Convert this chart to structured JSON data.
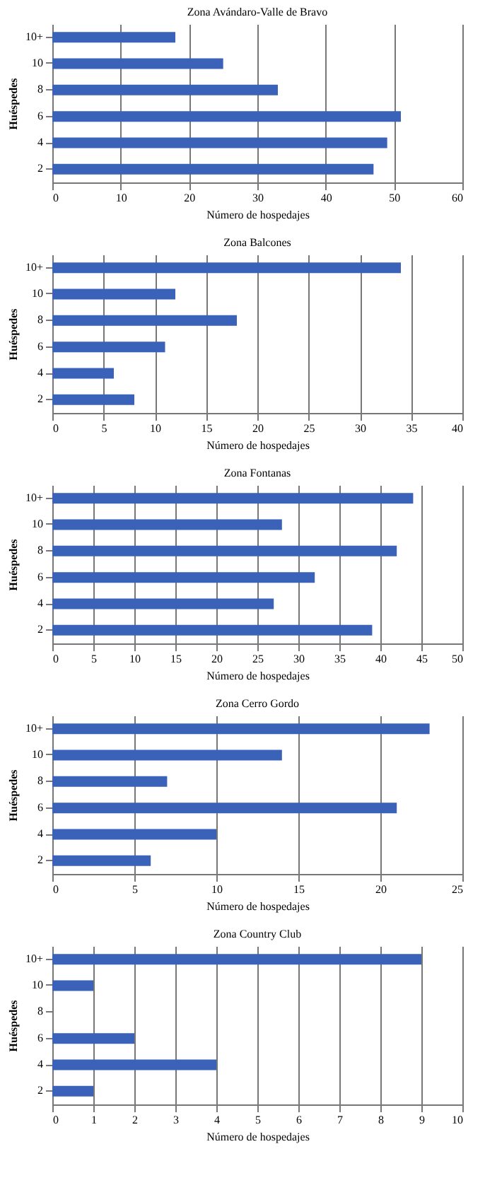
{
  "chart_data": [
    {
      "type": "bar",
      "orientation": "horizontal",
      "title": "Zona Avándaro-Valle de Bravo",
      "xlabel": "Número de hospedajes",
      "ylabel": "Huéspedes",
      "categories": [
        "10+",
        "10",
        "8",
        "6",
        "4",
        "2"
      ],
      "values": [
        18,
        25,
        33,
        51,
        49,
        47
      ],
      "color": "#3a62b8",
      "xlim": [
        0,
        60
      ],
      "xticks": [
        0,
        10,
        20,
        30,
        40,
        50,
        60
      ],
      "grid": "x"
    },
    {
      "type": "bar",
      "orientation": "horizontal",
      "title": "Zona Balcones",
      "xlabel": "Número de hospedajes",
      "ylabel": "Huéspedes",
      "categories": [
        "10+",
        "10",
        "8",
        "6",
        "4",
        "2"
      ],
      "values": [
        34,
        12,
        18,
        11,
        6,
        8
      ],
      "color": "#3a62b8",
      "xlim": [
        0,
        40
      ],
      "xticks": [
        0,
        5,
        10,
        15,
        20,
        25,
        30,
        35,
        40
      ],
      "grid": "x"
    },
    {
      "type": "bar",
      "orientation": "horizontal",
      "title": "Zona Fontanas",
      "xlabel": "Número de hospedajes",
      "ylabel": "Huéspedes",
      "categories": [
        "10+",
        "10",
        "8",
        "6",
        "4",
        "2"
      ],
      "values": [
        44,
        28,
        42,
        32,
        27,
        39
      ],
      "color": "#3a62b8",
      "xlim": [
        0,
        50
      ],
      "xticks": [
        0,
        5,
        10,
        15,
        20,
        25,
        30,
        35,
        40,
        45,
        50
      ],
      "grid": "x"
    },
    {
      "type": "bar",
      "orientation": "horizontal",
      "title": "Zona Cerro Gordo",
      "xlabel": "Número de hospedajes",
      "ylabel": "Huéspedes",
      "categories": [
        "10+",
        "10",
        "8",
        "6",
        "4",
        "2"
      ],
      "values": [
        23,
        14,
        7,
        21,
        10,
        6
      ],
      "color": "#3a62b8",
      "xlim": [
        0,
        25
      ],
      "xticks": [
        0,
        5,
        10,
        15,
        20,
        25
      ],
      "grid": "x"
    },
    {
      "type": "bar",
      "orientation": "horizontal",
      "title": "Zona Country Club",
      "xlabel": "Número de hospedajes",
      "ylabel": "Huéspedes",
      "categories": [
        "10+",
        "10",
        "8",
        "6",
        "4",
        "2"
      ],
      "values": [
        9,
        1,
        0,
        2,
        4,
        1
      ],
      "color": "#3a62b8",
      "xlim": [
        0,
        10
      ],
      "xticks": [
        0,
        1,
        2,
        3,
        4,
        5,
        6,
        7,
        8,
        9,
        10
      ],
      "grid": "x"
    }
  ]
}
